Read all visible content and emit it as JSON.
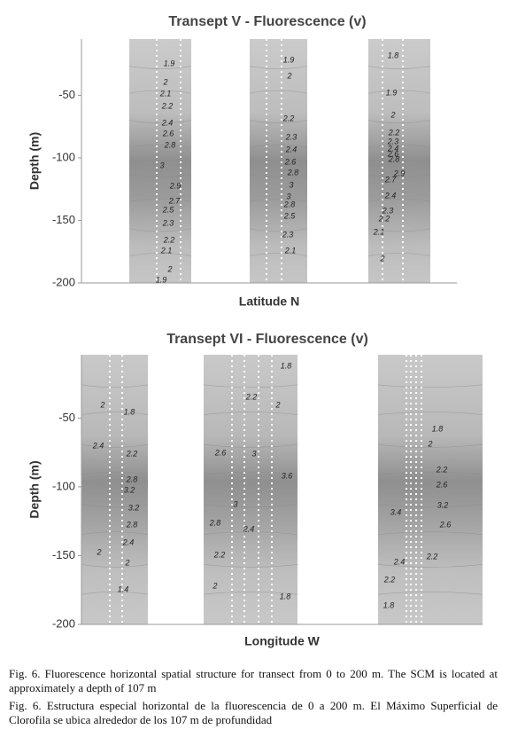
{
  "chart_data": [
    {
      "type": "contour",
      "title": "Transept V - Fluorescence (v)",
      "x_label": "Latitude N",
      "y_label": "Depth (m)",
      "ylim": [
        -200,
        -5
      ],
      "yticks": [
        -50,
        -100,
        -150,
        -200
      ],
      "contour_labels": [
        1.9,
        2,
        2.1,
        2.2,
        2.4,
        2.6,
        2.8,
        3,
        2.9,
        2.7,
        2.5,
        2.3,
        2.2,
        2.1,
        2,
        1.9,
        1.9,
        2,
        2.2,
        2.3,
        2.4,
        2.6,
        2.8,
        3,
        3,
        2.8,
        2.5,
        2.3,
        2.1,
        1.8,
        1.9,
        2,
        2.2,
        2.3,
        2.4,
        2.6,
        2.8,
        2.9,
        2.7,
        2.4,
        2.3,
        2.2,
        2.1,
        2
      ]
    },
    {
      "type": "contour",
      "title": "Transept VI - Fluorescence (v)",
      "x_label": "Longitude W",
      "y_label": "Depth (m)",
      "ylim": [
        -200,
        -4
      ],
      "yticks": [
        -50,
        -100,
        -150,
        -200
      ],
      "contour_labels": [
        2,
        1.8,
        2.4,
        2.2,
        2.8,
        3.2,
        3.2,
        2.8,
        2.4,
        2,
        2,
        1.4,
        1.8,
        2.2,
        2,
        2.6,
        3,
        3.6,
        3,
        2.8,
        2.4,
        2.2,
        2,
        1.8,
        1.8,
        2,
        2.2,
        2.6,
        3.2,
        3.4,
        2.6,
        2.2,
        2.4,
        2.2,
        1.8
      ]
    }
  ],
  "caption": {
    "english": "Fig. 6. Fluorescence horizontal spatial structure for transect from 0 to 200 m. The SCM is located at approximately a depth of 107 m",
    "spanish": "Fig. 6. Estructura especial horizontal de la fluorescencia de 0 a 200 m. El Máximo Superficial de Clorofila se ubica alrededor de los 107 m de profundidad"
  }
}
